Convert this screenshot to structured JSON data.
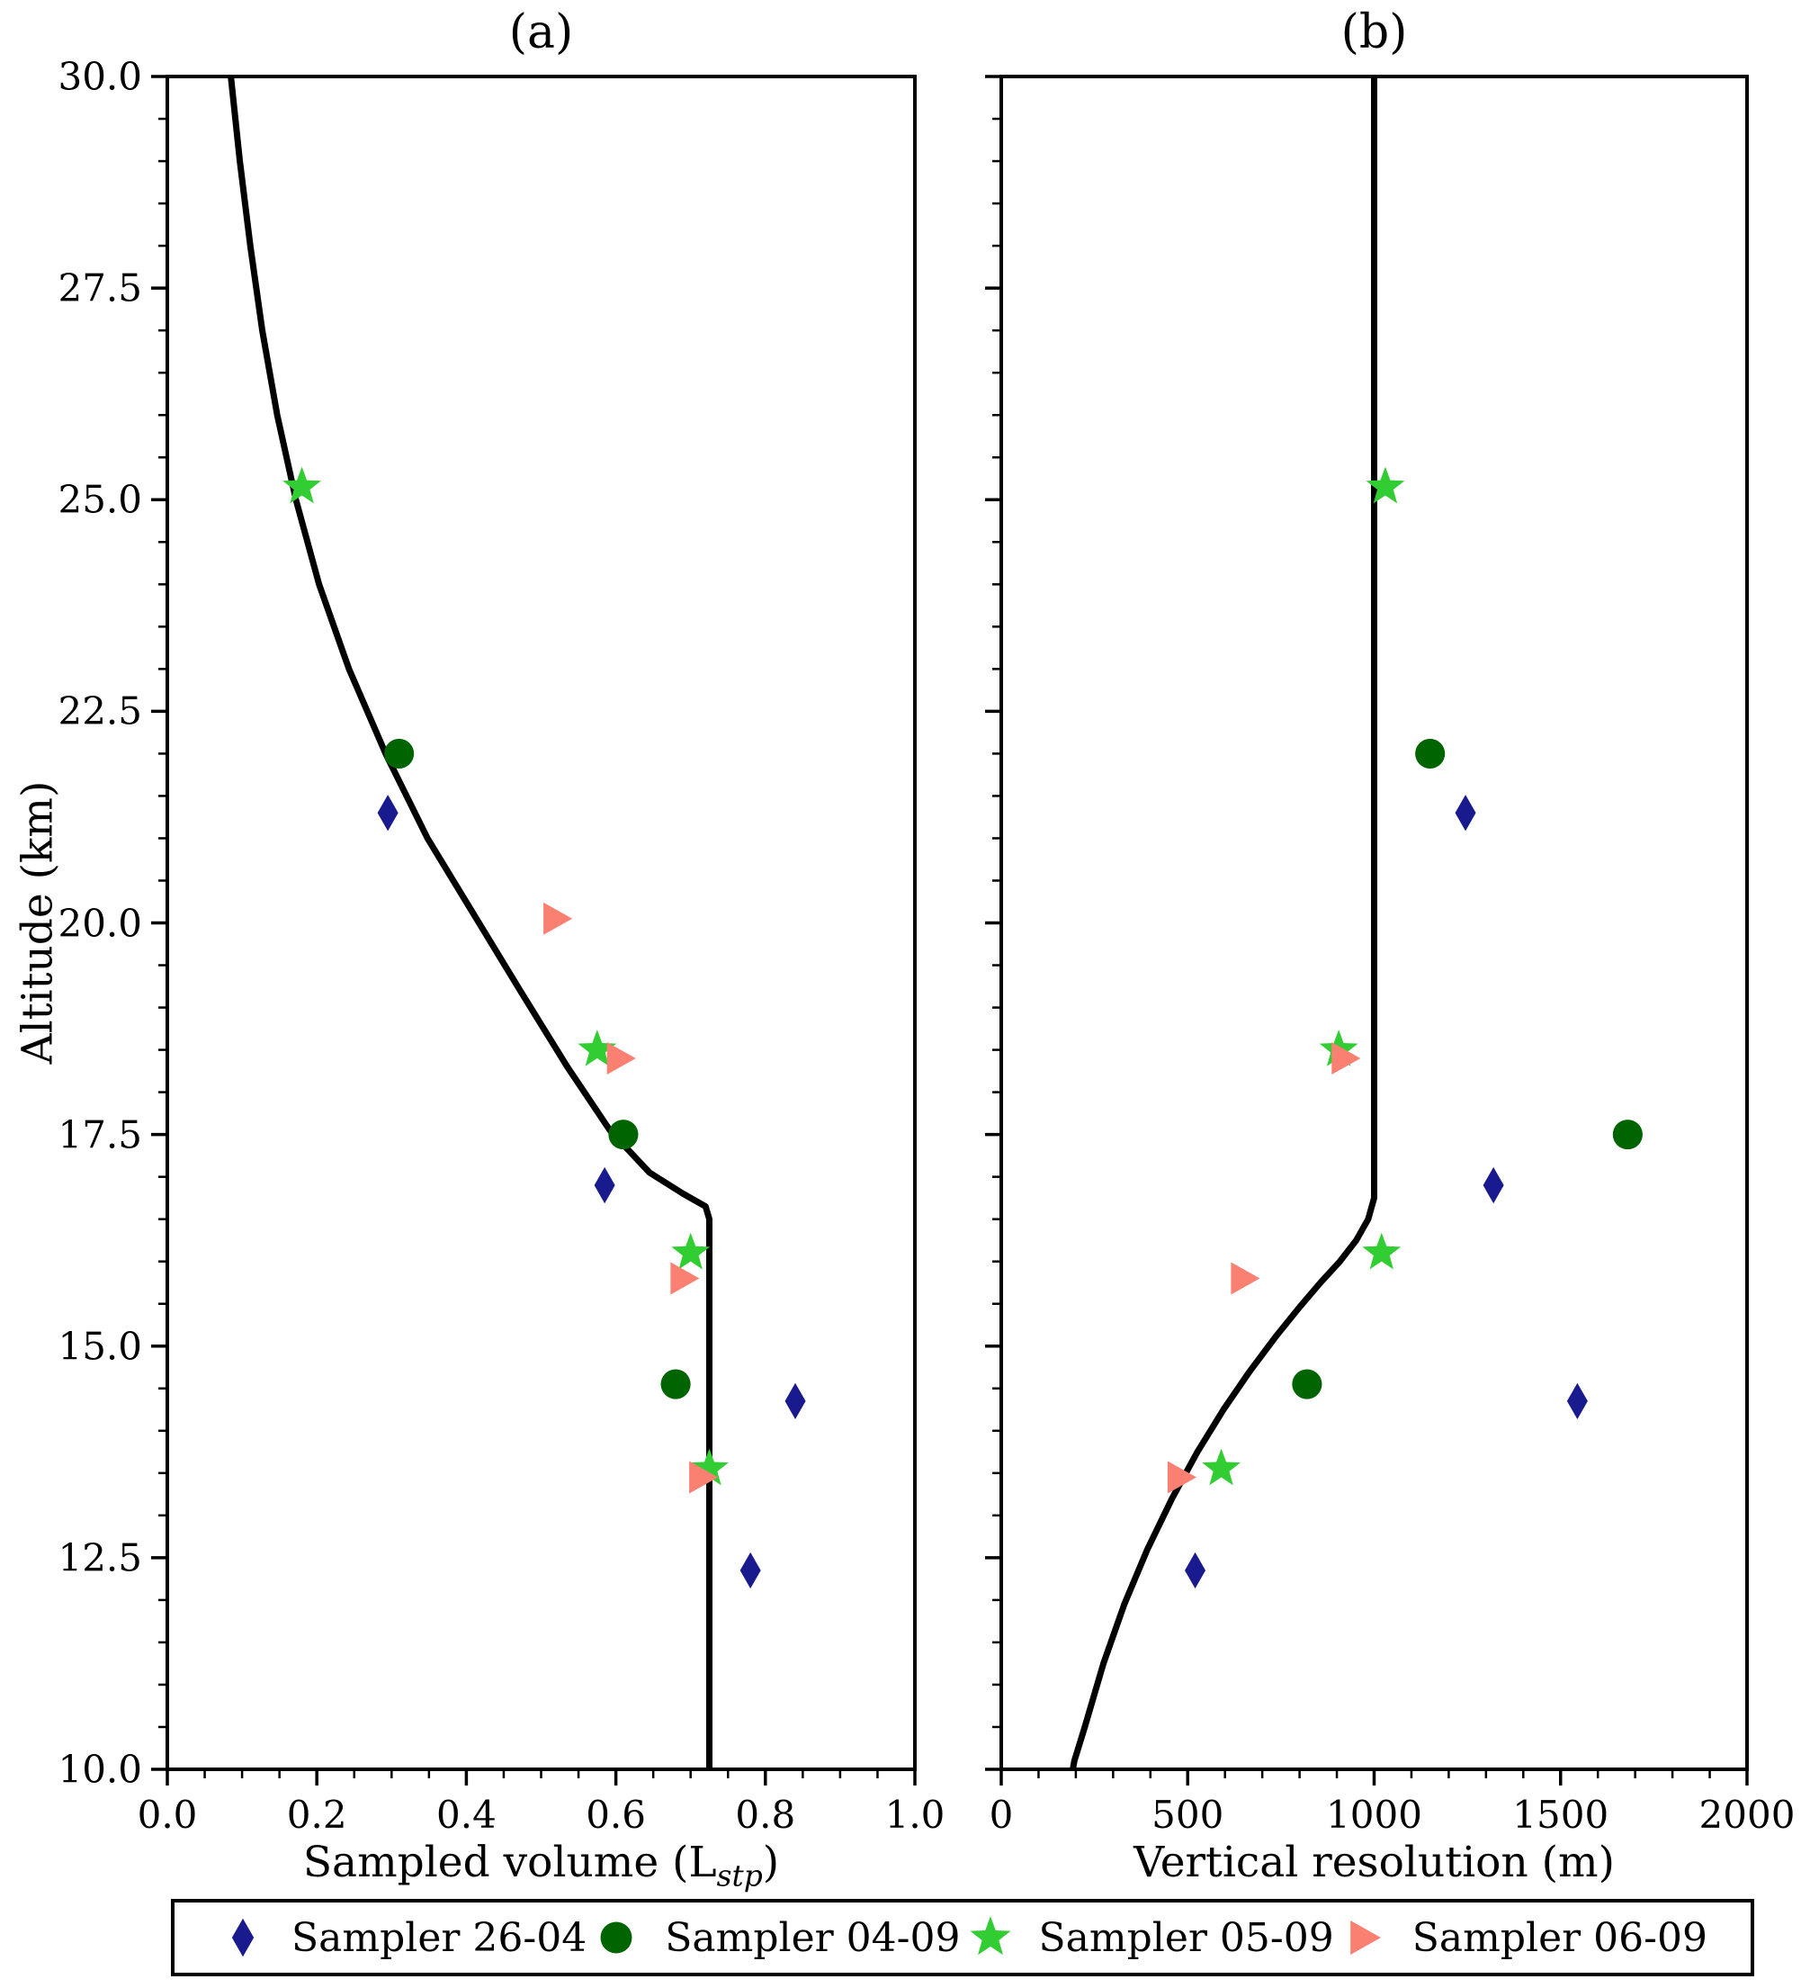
{
  "figure": {
    "background": "#ffffff",
    "frame_color": "#000000",
    "curve_color": "#000000"
  },
  "legend": {
    "items": [
      {
        "label": "Sampler 26-04",
        "marker": "diamond",
        "color": "#1a1a8f"
      },
      {
        "label": "Sampler 04-09",
        "marker": "circle",
        "color": "#006400"
      },
      {
        "label": "Sampler 05-09",
        "marker": "star",
        "color": "#32cd32"
      },
      {
        "label": "Sampler 06-09",
        "marker": "triangle-right",
        "color": "#fa8072"
      }
    ]
  },
  "chart_data": [
    {
      "type": "scatter",
      "title": "(a)",
      "xlabel_pre": "Sampled volume (L",
      "xlabel_sub": "stp",
      "xlabel_post": ")",
      "ylabel": "Altitude (km)",
      "xlim": [
        0.0,
        1.0
      ],
      "ylim": [
        10.0,
        30.0
      ],
      "grid": false,
      "xticks": {
        "values": [
          0.0,
          0.2,
          0.4,
          0.6,
          0.8,
          1.0
        ],
        "labels": [
          "0.0",
          "0.2",
          "0.4",
          "0.6",
          "0.8",
          "1.0"
        ],
        "minor_step": 0.05
      },
      "yticks": {
        "values": [
          10.0,
          12.5,
          15.0,
          17.5,
          20.0,
          22.5,
          25.0,
          27.5,
          30.0
        ],
        "labels": [
          "10.0",
          "12.5",
          "15.0",
          "17.5",
          "20.0",
          "22.5",
          "25.0",
          "27.5",
          "30.0"
        ],
        "minor_step": 0.5
      },
      "curve": {
        "name": "model-sampled-volume-profile",
        "color": "#000000",
        "points": [
          [
            0.085,
            30
          ],
          [
            0.097,
            29
          ],
          [
            0.111,
            28
          ],
          [
            0.127,
            27
          ],
          [
            0.147,
            26
          ],
          [
            0.172,
            25
          ],
          [
            0.203,
            24
          ],
          [
            0.243,
            23
          ],
          [
            0.292,
            22
          ],
          [
            0.348,
            21
          ],
          [
            0.41,
            20.1
          ],
          [
            0.472,
            19.2
          ],
          [
            0.535,
            18.3
          ],
          [
            0.592,
            17.55
          ],
          [
            0.645,
            17.05
          ],
          [
            0.69,
            16.8
          ],
          [
            0.72,
            16.65
          ],
          [
            0.725,
            16.5
          ],
          [
            0.725,
            10
          ]
        ]
      },
      "series": [
        {
          "name": "Sampler 26-04",
          "marker": "diamond",
          "color": "#1a1a8f",
          "points": [
            [
              0.295,
              21.3
            ],
            [
              0.585,
              16.9
            ],
            [
              0.84,
              14.35
            ],
            [
              0.78,
              12.35
            ]
          ]
        },
        {
          "name": "Sampler 04-09",
          "marker": "circle",
          "color": "#006400",
          "points": [
            [
              0.31,
              22.0
            ],
            [
              0.61,
              17.5
            ],
            [
              0.68,
              14.55
            ]
          ]
        },
        {
          "name": "Sampler 05-09",
          "marker": "star",
          "color": "#32cd32",
          "points": [
            [
              0.18,
              25.15
            ],
            [
              0.575,
              18.5
            ],
            [
              0.7,
              16.1
            ],
            [
              0.725,
              13.55
            ]
          ]
        },
        {
          "name": "Sampler 06-09",
          "marker": "triangle-right",
          "color": "#fa8072",
          "points": [
            [
              0.52,
              20.05
            ],
            [
              0.605,
              18.4
            ],
            [
              0.69,
              15.8
            ],
            [
              0.715,
              13.45
            ]
          ]
        }
      ]
    },
    {
      "type": "scatter",
      "title": "(b)",
      "xlabel": "Vertical resolution (m)",
      "ylabel": "",
      "xlim": [
        0,
        2000
      ],
      "ylim": [
        10.0,
        30.0
      ],
      "grid": false,
      "xticks": {
        "values": [
          0,
          500,
          1000,
          1500,
          2000
        ],
        "labels": [
          "0",
          "500",
          "1000",
          "1500",
          "2000"
        ],
        "minor_step": 100
      },
      "yticks": {
        "values": [
          10.0,
          12.5,
          15.0,
          17.5,
          20.0,
          22.5,
          25.0,
          27.5,
          30.0
        ],
        "labels": [],
        "minor_step": 0.5
      },
      "curve": {
        "name": "model-vertical-resolution-profile",
        "color": "#000000",
        "points": [
          [
            1000,
            30
          ],
          [
            1000,
            16.75
          ],
          [
            984,
            16.5
          ],
          [
            952,
            16.25
          ],
          [
            908,
            16.0
          ],
          [
            856,
            15.75
          ],
          [
            798,
            15.45
          ],
          [
            734,
            15.1
          ],
          [
            666,
            14.7
          ],
          [
            596,
            14.25
          ],
          [
            526,
            13.75
          ],
          [
            458,
            13.2
          ],
          [
            392,
            12.6
          ],
          [
            330,
            11.95
          ],
          [
            274,
            11.25
          ],
          [
            224,
            10.5
          ],
          [
            196,
            10.1
          ],
          [
            192,
            10
          ]
        ]
      },
      "series": [
        {
          "name": "Sampler 26-04",
          "marker": "diamond",
          "color": "#1a1a8f",
          "points": [
            [
              1245,
              21.3
            ],
            [
              1320,
              16.9
            ],
            [
              1545,
              14.35
            ],
            [
              520,
              12.35
            ]
          ]
        },
        {
          "name": "Sampler 04-09",
          "marker": "circle",
          "color": "#006400",
          "points": [
            [
              1150,
              22.0
            ],
            [
              1680,
              17.5
            ],
            [
              820,
              14.55
            ]
          ]
        },
        {
          "name": "Sampler 05-09",
          "marker": "star",
          "color": "#32cd32",
          "points": [
            [
              1030,
              25.15
            ],
            [
              905,
              18.5
            ],
            [
              1020,
              16.1
            ],
            [
              590,
              13.55
            ]
          ]
        },
        {
          "name": "Sampler 06-09",
          "marker": "triangle-right",
          "color": "#fa8072",
          "points": [
            [
              920,
              18.4
            ],
            [
              650,
              15.8
            ],
            [
              480,
              13.45
            ]
          ]
        }
      ]
    }
  ]
}
